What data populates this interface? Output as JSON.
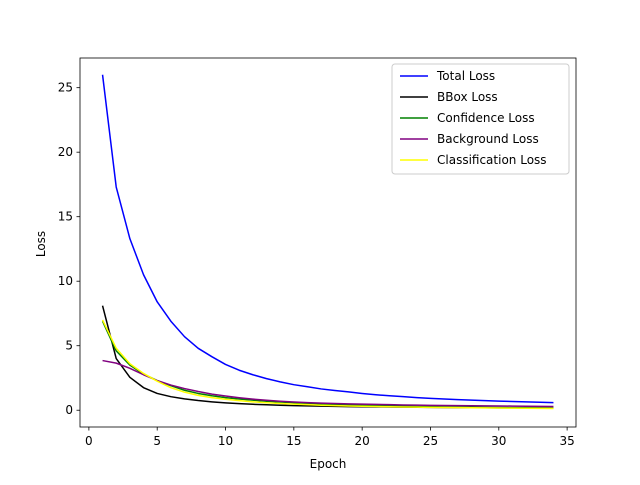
{
  "chart_data": {
    "type": "line",
    "title": "",
    "xlabel": "Epoch",
    "ylabel": "Loss",
    "xlim": [
      -0.65,
      35.65
    ],
    "ylim": [
      -1.3,
      27.3
    ],
    "xticks": [
      0,
      5,
      10,
      15,
      20,
      25,
      30,
      35
    ],
    "xtick_labels": [
      "0",
      "5",
      "10",
      "15",
      "20",
      "25",
      "30",
      "35"
    ],
    "yticks": [
      0,
      5,
      10,
      15,
      20,
      25
    ],
    "ytick_labels": [
      "0",
      "5",
      "10",
      "15",
      "20",
      "25"
    ],
    "grid": false,
    "legend_position": "top-right",
    "x": [
      1,
      2,
      3,
      4,
      5,
      6,
      7,
      8,
      9,
      10,
      11,
      12,
      13,
      14,
      15,
      16,
      17,
      18,
      19,
      20,
      21,
      22,
      23,
      24,
      25,
      26,
      27,
      28,
      29,
      30,
      31,
      32,
      33,
      34
    ],
    "series": [
      {
        "name": "Total Loss",
        "color": "#0000ff",
        "values": [
          26.0,
          17.3,
          13.3,
          10.5,
          8.4,
          6.9,
          5.7,
          4.8,
          4.15,
          3.55,
          3.1,
          2.75,
          2.45,
          2.2,
          1.98,
          1.82,
          1.65,
          1.53,
          1.42,
          1.3,
          1.2,
          1.12,
          1.05,
          0.98,
          0.92,
          0.87,
          0.82,
          0.78,
          0.74,
          0.71,
          0.68,
          0.65,
          0.62,
          0.59
        ]
      },
      {
        "name": "BBox Loss",
        "color": "#000000",
        "values": [
          8.1,
          4.0,
          2.55,
          1.75,
          1.3,
          1.05,
          0.88,
          0.75,
          0.65,
          0.57,
          0.51,
          0.46,
          0.42,
          0.39,
          0.36,
          0.34,
          0.32,
          0.3,
          0.28,
          0.27,
          0.26,
          0.25,
          0.24,
          0.23,
          0.22,
          0.21,
          0.2,
          0.2,
          0.19,
          0.18,
          0.18,
          0.17,
          0.17,
          0.16
        ]
      },
      {
        "name": "Confidence Loss",
        "color": "#008000",
        "values": [
          6.9,
          4.6,
          3.5,
          2.8,
          2.3,
          1.9,
          1.55,
          1.3,
          1.12,
          0.98,
          0.87,
          0.78,
          0.7,
          0.64,
          0.58,
          0.53,
          0.49,
          0.45,
          0.42,
          0.39,
          0.36,
          0.34,
          0.32,
          0.3,
          0.28,
          0.26,
          0.25,
          0.23,
          0.22,
          0.21,
          0.2,
          0.19,
          0.18,
          0.17
        ]
      },
      {
        "name": "Background Loss",
        "color": "#800080",
        "values": [
          3.85,
          3.65,
          3.25,
          2.75,
          2.3,
          1.95,
          1.68,
          1.45,
          1.25,
          1.1,
          0.97,
          0.86,
          0.77,
          0.7,
          0.64,
          0.59,
          0.55,
          0.52,
          0.49,
          0.47,
          0.45,
          0.43,
          0.41,
          0.4,
          0.38,
          0.37,
          0.36,
          0.35,
          0.34,
          0.33,
          0.32,
          0.31,
          0.3,
          0.29
        ]
      },
      {
        "name": "Classification Loss",
        "color": "#ffff00",
        "values": [
          7.0,
          4.8,
          3.6,
          2.85,
          2.25,
          1.75,
          1.4,
          1.15,
          0.98,
          0.85,
          0.74,
          0.65,
          0.58,
          0.52,
          0.47,
          0.43,
          0.39,
          0.36,
          0.33,
          0.31,
          0.29,
          0.27,
          0.25,
          0.24,
          0.22,
          0.21,
          0.2,
          0.19,
          0.18,
          0.17,
          0.16,
          0.15,
          0.14,
          0.13
        ]
      }
    ]
  }
}
